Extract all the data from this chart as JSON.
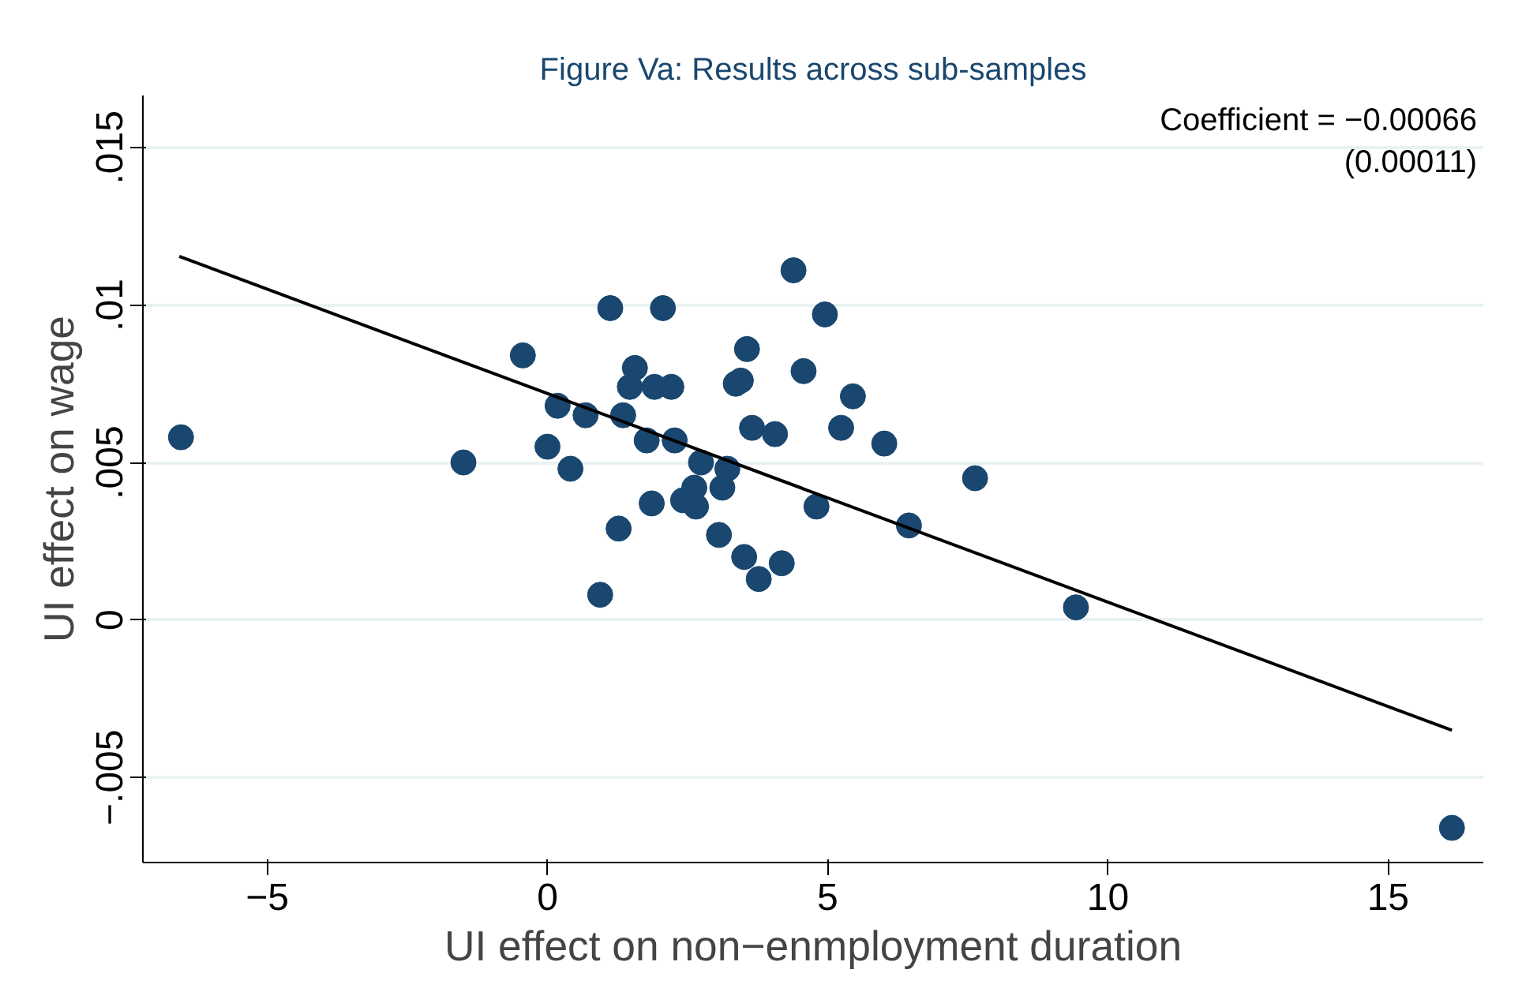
{
  "chart_data": {
    "type": "scatter",
    "title": "Figure Va: Results across sub-samples",
    "xlabel": "UI effect on non−enmployment duration",
    "ylabel": "UI effect on wage",
    "annotations": [
      "Coefficient = −0.00066",
      "(0.00011)"
    ],
    "series": [
      {
        "color": "#1a476f",
        "marker": "circle",
        "x": [
          -6.54,
          -1.5,
          -0.44,
          0.0,
          0.18,
          0.41,
          0.68,
          0.94,
          1.12,
          1.27,
          1.35,
          1.47,
          1.56,
          1.77,
          1.86,
          1.91,
          2.06,
          2.21,
          2.27,
          2.42,
          2.62,
          2.65,
          2.74,
          3.06,
          3.12,
          3.21,
          3.36,
          3.45,
          3.51,
          3.56,
          3.65,
          3.77,
          4.06,
          4.18,
          4.39,
          4.57,
          4.8,
          4.95,
          5.24,
          5.45,
          6.01,
          6.45,
          7.63,
          9.43,
          16.14
        ],
        "values": [
          0.0058,
          0.005,
          0.0084,
          0.0055,
          0.0068,
          0.0048,
          0.0065,
          0.0008,
          0.0099,
          0.0029,
          0.0065,
          0.0074,
          0.008,
          0.0057,
          0.0037,
          0.0074,
          0.0099,
          0.0074,
          0.0057,
          0.0038,
          0.0042,
          0.0036,
          0.005,
          0.0027,
          0.0042,
          0.0048,
          0.0075,
          0.0076,
          0.002,
          0.0086,
          0.0061,
          0.0013,
          0.0059,
          0.0018,
          0.0111,
          0.0079,
          0.0036,
          0.0097,
          0.0061,
          0.0071,
          0.0056,
          0.003,
          0.0045,
          0.0004,
          -0.0066
        ]
      },
      {
        "type": "line",
        "color": "#000000",
        "marker": "none",
        "x": [
          -6.57,
          16.14
        ],
        "values": [
          0.01154,
          -0.0035
        ]
      }
    ],
    "xlim": [
      -7.22,
      16.7
    ],
    "xticks": [
      {
        "value": -5,
        "label": "−5"
      },
      0,
      5,
      10,
      15
    ],
    "ylim": [
      -0.0077,
      0.01665
    ],
    "yticks": [
      {
        "value": -0.005,
        "label": "−.005"
      },
      0,
      {
        "value": 0.005,
        "label": ".005"
      },
      {
        "value": 0.01,
        "label": ".01"
      },
      {
        "value": 0.015,
        "label": ".015"
      }
    ],
    "grid": "y"
  }
}
